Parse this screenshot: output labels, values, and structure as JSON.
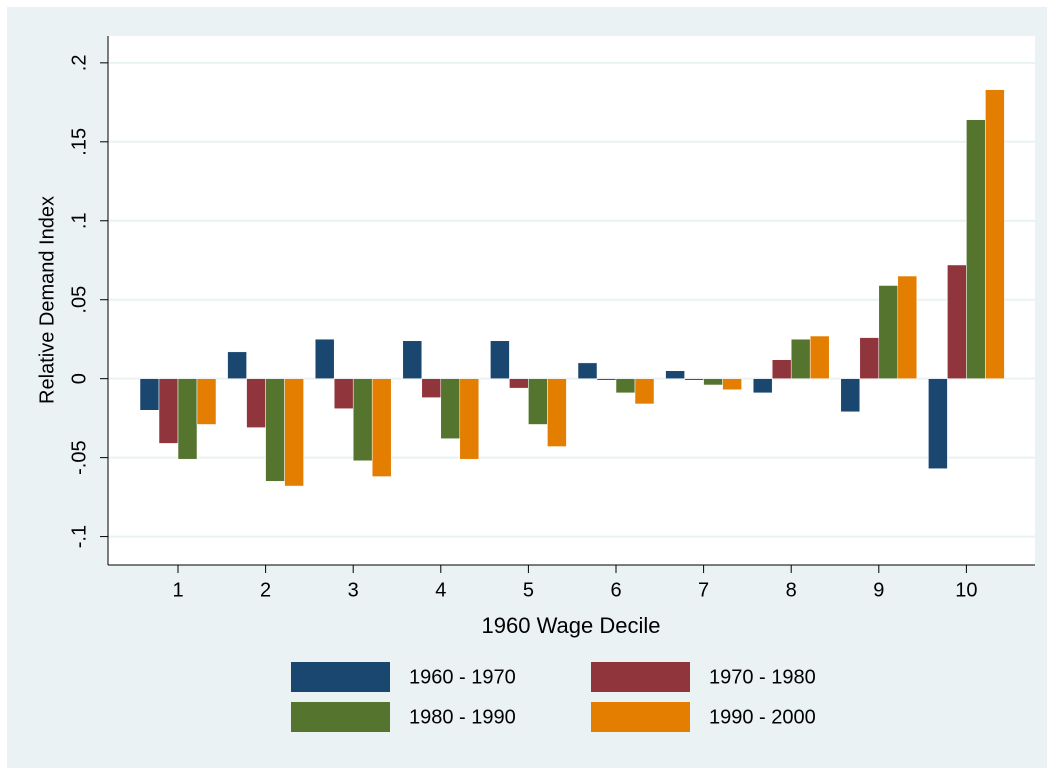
{
  "chart_data": {
    "type": "bar",
    "xlabel": "1960 Wage Decile",
    "ylabel": "Relative Demand Index",
    "categories": [
      "1",
      "2",
      "3",
      "4",
      "5",
      "6",
      "7",
      "8",
      "9",
      "10"
    ],
    "series": [
      {
        "name": "1960 - 1970",
        "color": "#1a476f",
        "values": [
          -0.02,
          0.017,
          0.025,
          0.024,
          0.024,
          0.01,
          0.005,
          -0.009,
          -0.021,
          -0.057
        ]
      },
      {
        "name": "1970 - 1980",
        "color": "#90353b",
        "values": [
          -0.041,
          -0.031,
          -0.019,
          -0.012,
          -0.006,
          -0.001,
          -0.001,
          0.012,
          0.026,
          0.072
        ]
      },
      {
        "name": "1980 - 1990",
        "color": "#55752f",
        "values": [
          -0.051,
          -0.065,
          -0.052,
          -0.038,
          -0.029,
          -0.009,
          -0.004,
          0.025,
          0.059,
          0.164
        ]
      },
      {
        "name": "1990 - 2000",
        "color": "#e37e00",
        "values": [
          -0.029,
          -0.068,
          -0.062,
          -0.051,
          -0.043,
          -0.016,
          -0.007,
          0.027,
          0.065,
          0.183
        ]
      }
    ],
    "ylim": [
      -0.118,
      0.217
    ],
    "yticks": [
      {
        "value": -0.1,
        "label": "-.1"
      },
      {
        "value": -0.05,
        "label": "-.05"
      },
      0,
      {
        "value": 0.05,
        "label": ".05"
      },
      {
        "value": 0.1,
        "label": ".1"
      },
      {
        "value": 0.15,
        "label": ".15"
      },
      {
        "value": 0.2,
        "label": ".2"
      }
    ],
    "grid": true
  }
}
